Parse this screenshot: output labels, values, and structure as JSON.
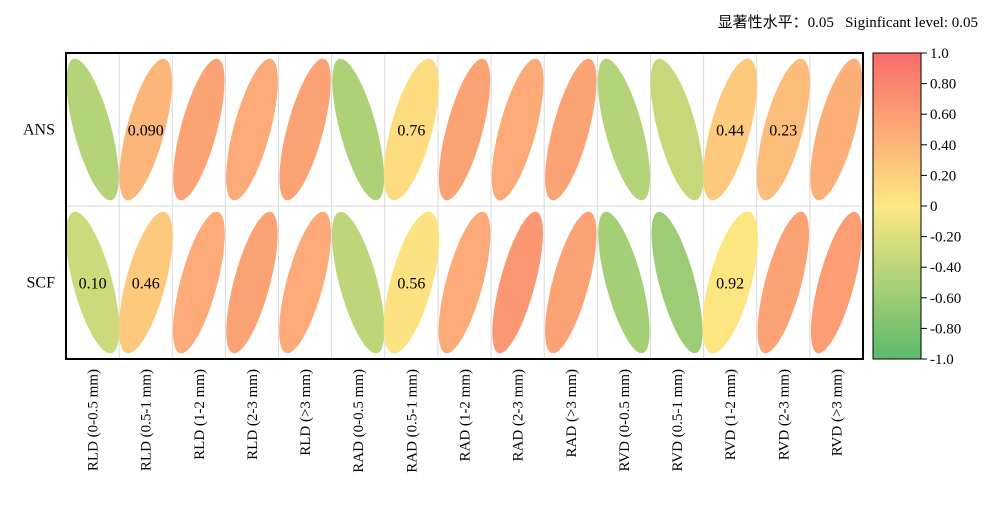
{
  "note_text": "显著性水平：0.05   Siginficant level: 0.05",
  "chart_data": {
    "type": "heatmap",
    "style": "correlation ellipse matrix",
    "rows": [
      "ANS",
      "SCF"
    ],
    "columns": [
      "RLD (0-0.5 mm)",
      "RLD (0.5-1 mm)",
      "RLD (1-2 mm)",
      "RLD (2-3 mm)",
      "RLD (>3 mm)",
      "RAD (0-0.5 mm)",
      "RAD (0.5-1 mm)",
      "RAD (1-2 mm)",
      "RAD (2-3 mm)",
      "RAD (>3 mm)",
      "RVD (0-0.5 mm)",
      "RVD (0.5-1 mm)",
      "RVD (1-2 mm)",
      "RVD (2-3 mm)",
      "RVD (>3 mm)"
    ],
    "correlations": [
      [
        -0.45,
        0.4,
        0.55,
        0.5,
        0.55,
        -0.5,
        0.1,
        0.55,
        0.5,
        0.55,
        -0.45,
        -0.35,
        0.25,
        0.35,
        0.45
      ],
      [
        -0.3,
        0.25,
        0.5,
        0.55,
        0.5,
        -0.4,
        0.05,
        0.5,
        0.65,
        0.55,
        -0.55,
        -0.6,
        0.02,
        0.55,
        0.6
      ]
    ],
    "p_value_labels": [
      [
        "",
        "0.090",
        "",
        "",
        "",
        "",
        "0.76",
        "",
        "",
        "",
        "",
        "",
        "0.44",
        "0.23",
        ""
      ],
      [
        "0.10",
        "0.46",
        "",
        "",
        "",
        "",
        "0.56",
        "",
        "",
        "",
        "",
        "",
        "0.92",
        "",
        ""
      ]
    ],
    "colorbar": {
      "ticks": [
        "1.0",
        "0.80",
        "0.60",
        "0.40",
        "0.20",
        "0",
        "-0.20",
        "-0.40",
        "-0.60",
        "-0.80",
        "-1.0"
      ],
      "range": [
        -1,
        1
      ],
      "colors": {
        "negative": "#5cba6c",
        "zero": "#fde882",
        "positive": "#fb6b6b"
      }
    }
  }
}
